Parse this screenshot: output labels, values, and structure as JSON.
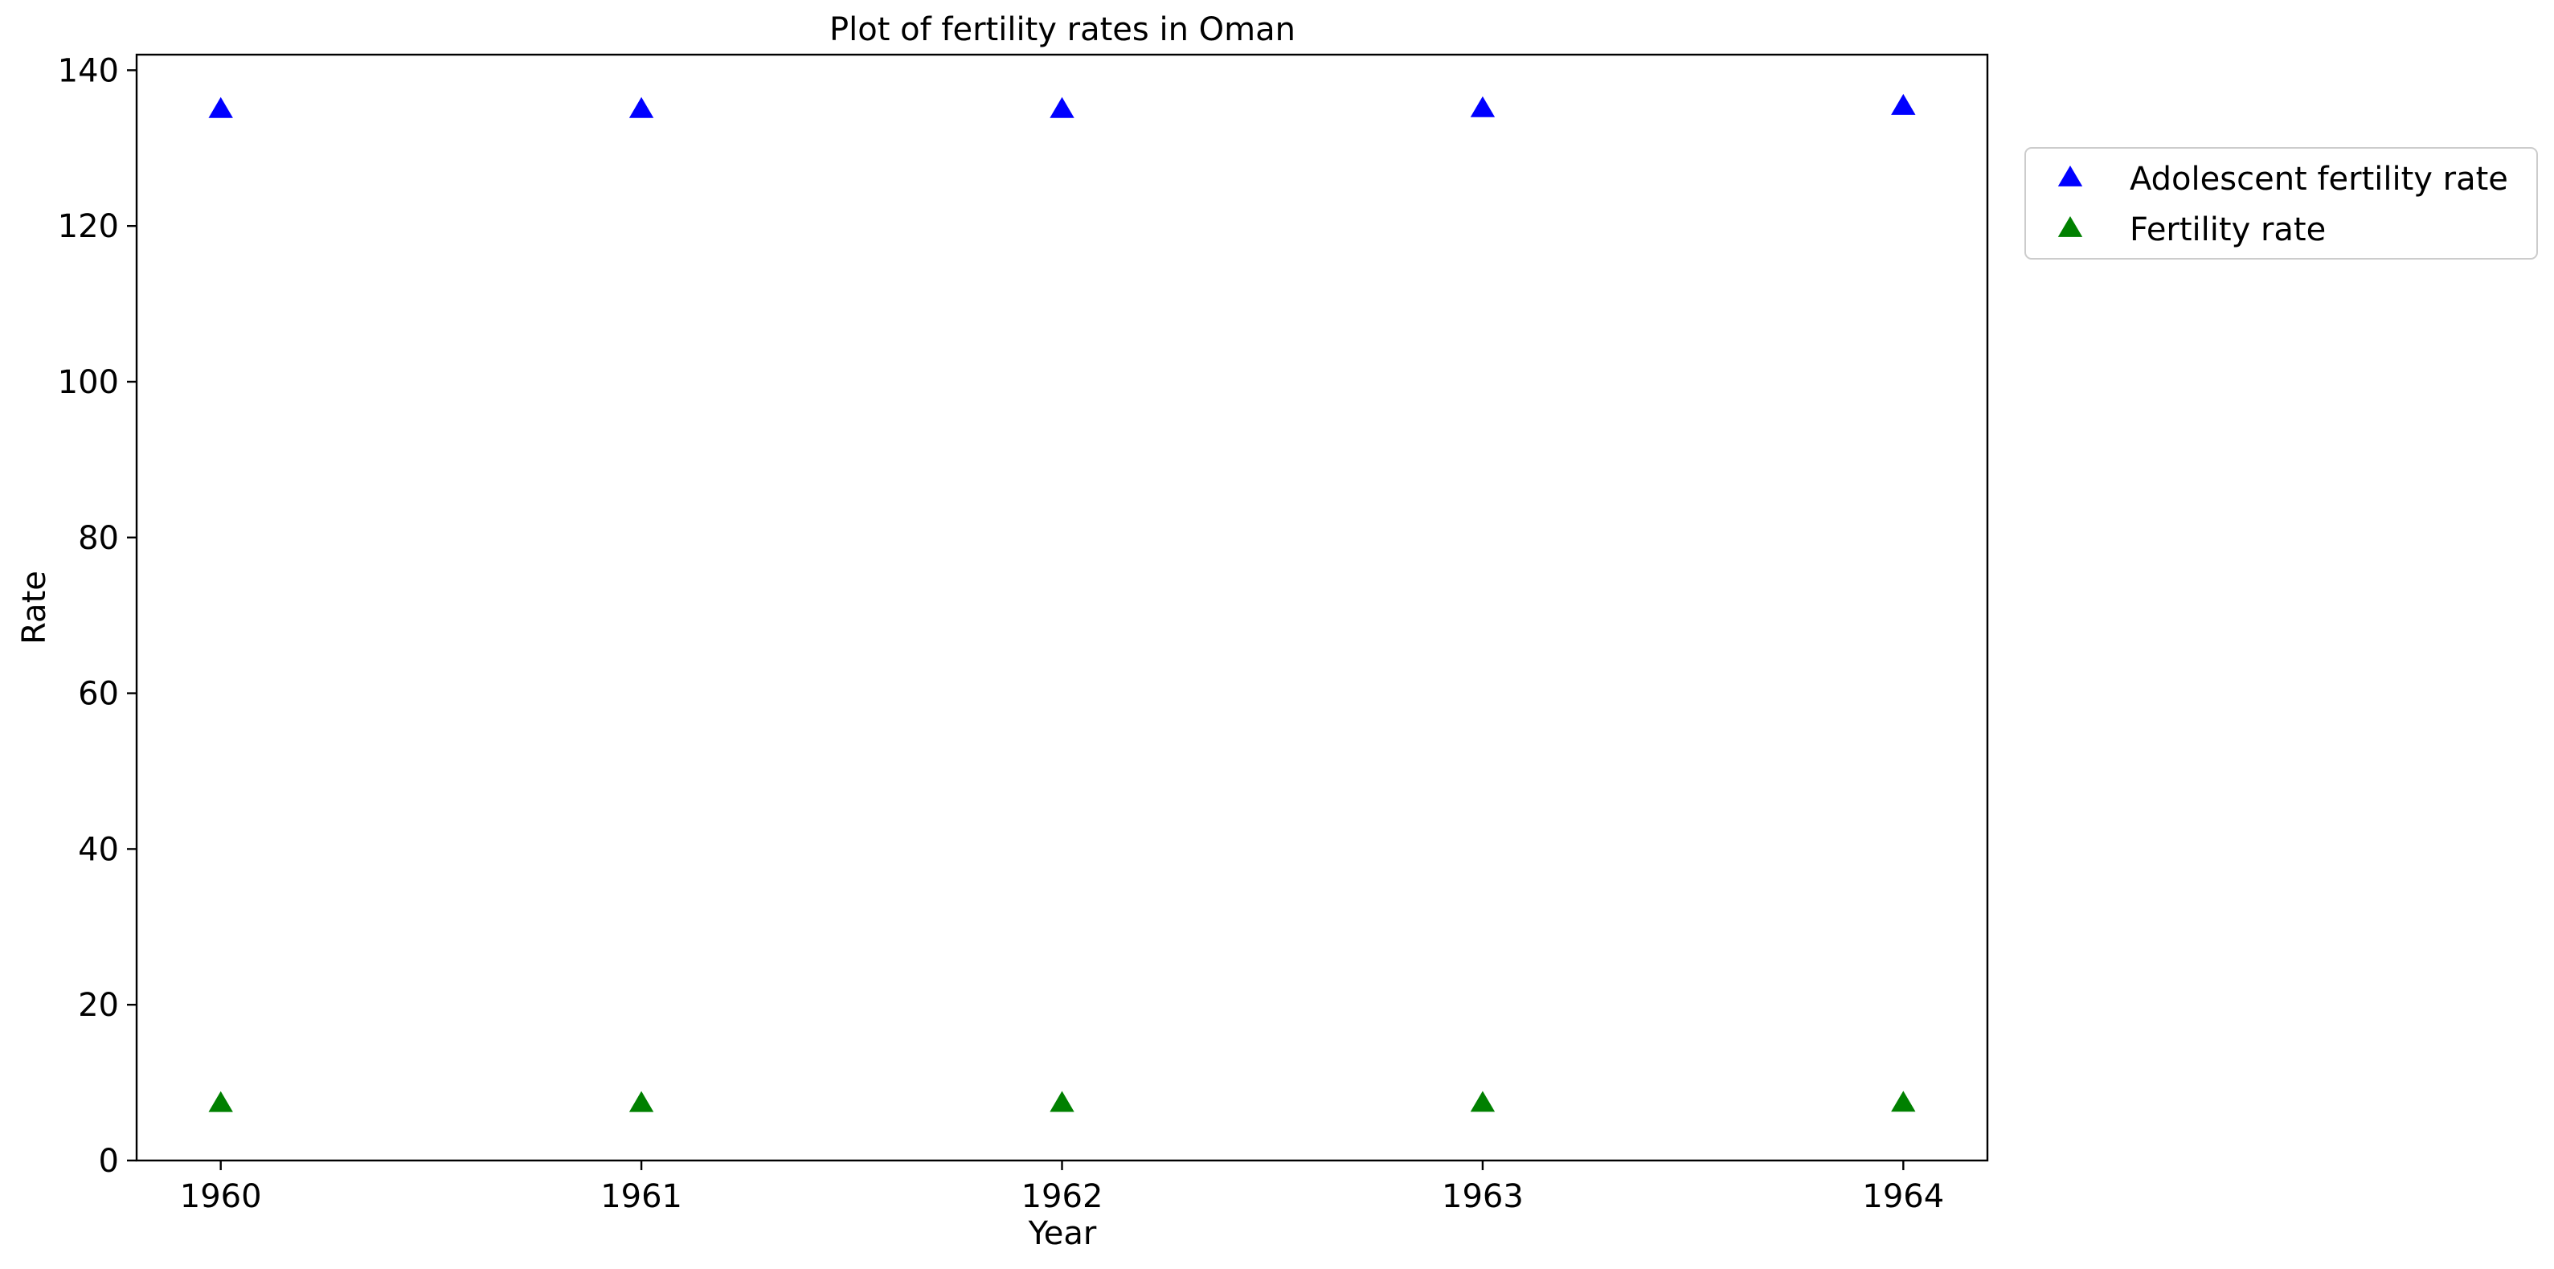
{
  "chart_data": {
    "type": "scatter",
    "title": "Plot of fertility rates in Oman",
    "xlabel": "Year",
    "ylabel": "Rate",
    "x": [
      1960,
      1961,
      1962,
      1963,
      1964
    ],
    "x_tick_labels": [
      "1960",
      "1961",
      "1962",
      "1963",
      "1964"
    ],
    "xlim": [
      1959.8,
      1964.2
    ],
    "ylim": [
      0,
      142
    ],
    "y_ticks": [
      0,
      20,
      40,
      60,
      80,
      100,
      120,
      140
    ],
    "y_tick_labels": [
      "0",
      "20",
      "40",
      "60",
      "80",
      "100",
      "120",
      "140"
    ],
    "grid": false,
    "legend_position": "outside-right-top",
    "marker": "triangle-up",
    "series": [
      {
        "name": "Adolescent fertility rate",
        "color": "#0000ff",
        "values": [
          134.9,
          134.9,
          134.9,
          135.0,
          135.3
        ]
      },
      {
        "name": "Fertility rate",
        "color": "#008000",
        "values": [
          7.25,
          7.26,
          7.27,
          7.28,
          7.29
        ]
      }
    ]
  }
}
